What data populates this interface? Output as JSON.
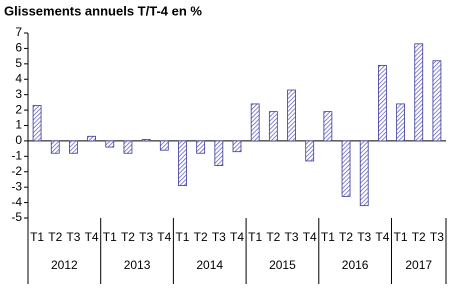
{
  "chart_data": {
    "type": "bar",
    "title": "Glissements annuels  T/T-4 en %",
    "categories": [
      "T1",
      "T2",
      "T3",
      "T4",
      "T1",
      "T2",
      "T3",
      "T4",
      "T1",
      "T2",
      "T3",
      "T4",
      "T1",
      "T2",
      "T3",
      "T4",
      "T1",
      "T2",
      "T3",
      "T4",
      "T1",
      "T2",
      "T3"
    ],
    "groups": [
      "2012",
      "2013",
      "2014",
      "2015",
      "2016",
      "2017"
    ],
    "values": [
      2.3,
      -0.8,
      -0.8,
      0.3,
      -0.4,
      -0.8,
      0.1,
      -0.6,
      -2.9,
      -0.8,
      -1.6,
      -0.7,
      2.4,
      1.9,
      3.3,
      -1.3,
      1.9,
      -3.6,
      -4.2,
      4.9,
      2.4,
      6.3,
      5.2
    ],
    "color": "#3a3a9a",
    "ylim": [
      -5,
      7
    ],
    "yticks": [
      -5,
      -4,
      -3,
      -2,
      -1,
      0,
      1,
      2,
      3,
      4,
      5,
      6,
      7
    ]
  }
}
